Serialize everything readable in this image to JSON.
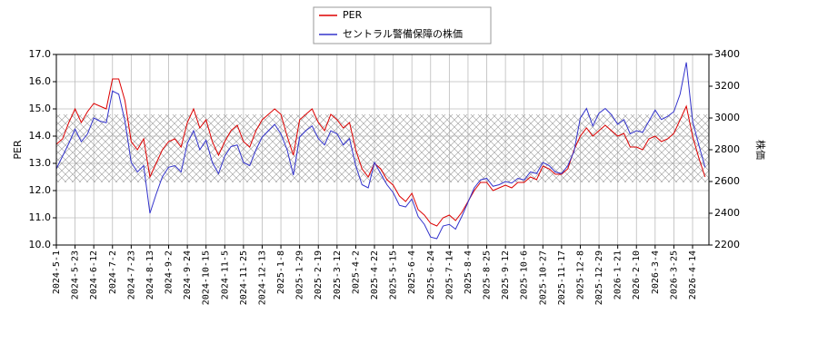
{
  "chart_data": {
    "type": "line",
    "y_label": "PER",
    "y2_label": "株価",
    "categories": [
      "2024-5-1",
      null,
      null,
      "2024-5-23",
      null,
      null,
      "2024-6-12",
      null,
      null,
      "2024-7-2",
      null,
      null,
      "2024-7-23",
      null,
      null,
      "2024-8-13",
      null,
      null,
      "2024-9-2",
      null,
      null,
      "2024-9-24",
      null,
      null,
      "2024-10-15",
      null,
      null,
      "2024-11-5",
      null,
      null,
      "2024-11-25",
      null,
      null,
      "2024-12-13",
      null,
      null,
      "2025-1-8",
      null,
      null,
      "2025-1-29",
      null,
      null,
      "2025-2-19",
      null,
      null,
      "2025-3-12",
      null,
      null,
      "2025-4-2",
      null,
      null,
      "2025-4-22",
      null,
      null,
      "2025-5-15",
      null,
      null,
      "2025-6-4",
      null,
      null,
      "2025-6-24",
      null,
      null,
      "2025-7-14",
      null,
      null,
      "2025-8-4",
      null,
      null,
      "2025-8-25",
      null,
      null,
      "2025-9-12",
      null,
      null,
      "2025-10-6",
      null,
      null,
      "2025-10-27",
      null,
      null,
      "2025-11-17",
      null,
      null,
      "2025-12-8",
      null,
      null,
      "2025-12-29",
      null,
      null,
      "2026-1-21",
      null,
      null,
      "2026-2-10",
      null,
      null,
      "2026-3-4",
      null,
      null,
      "2026-3-25",
      null,
      null,
      "2026-4-14",
      null,
      null
    ],
    "series": [
      {
        "name": "PER",
        "color": "#dd0000",
        "values": [
          13.7,
          13.9,
          14.5,
          15.0,
          14.5,
          14.9,
          15.2,
          15.1,
          15.0,
          16.1,
          16.1,
          15.3,
          13.8,
          13.5,
          13.9,
          12.5,
          13.0,
          13.5,
          13.8,
          13.9,
          13.6,
          14.5,
          15.0,
          14.3,
          14.6,
          13.8,
          13.3,
          13.8,
          14.2,
          14.4,
          13.8,
          13.6,
          14.2,
          14.6,
          14.8,
          15.0,
          14.8,
          14.0,
          13.3,
          14.6,
          14.8,
          15.0,
          14.5,
          14.2,
          14.8,
          14.6,
          14.3,
          14.5,
          13.5,
          12.8,
          12.5,
          13.0,
          12.8,
          12.4,
          12.2,
          11.8,
          11.6,
          11.9,
          11.3,
          11.1,
          10.8,
          10.7,
          11.0,
          11.1,
          10.9,
          11.2,
          11.6,
          12.0,
          12.3,
          12.3,
          12.0,
          12.1,
          12.2,
          12.1,
          12.3,
          12.3,
          12.5,
          12.4,
          12.9,
          12.8,
          12.6,
          12.6,
          12.8,
          13.5,
          14.0,
          14.3,
          14.0,
          14.2,
          14.4,
          14.2,
          14.0,
          14.1,
          13.6,
          13.6,
          13.5,
          13.9,
          14.0,
          13.8,
          13.9,
          14.1,
          14.6,
          15.1,
          14.0,
          13.2,
          12.5
        ]
      },
      {
        "name": "セントラル警備保障の株価",
        "color": "#3333cc",
        "axis": "y2",
        "values": [
          2680,
          2760,
          2840,
          2930,
          2850,
          2900,
          3000,
          2980,
          2970,
          3170,
          3150,
          2980,
          2720,
          2660,
          2700,
          2400,
          2520,
          2630,
          2690,
          2700,
          2660,
          2840,
          2920,
          2800,
          2860,
          2720,
          2650,
          2760,
          2820,
          2830,
          2720,
          2700,
          2800,
          2880,
          2920,
          2960,
          2900,
          2800,
          2640,
          2880,
          2920,
          2950,
          2870,
          2830,
          2920,
          2900,
          2830,
          2870,
          2700,
          2580,
          2560,
          2720,
          2650,
          2580,
          2530,
          2450,
          2440,
          2490,
          2380,
          2330,
          2250,
          2240,
          2320,
          2330,
          2300,
          2380,
          2470,
          2560,
          2610,
          2620,
          2570,
          2580,
          2600,
          2590,
          2620,
          2610,
          2660,
          2650,
          2720,
          2700,
          2660,
          2650,
          2700,
          2790,
          3000,
          3060,
          2950,
          3030,
          3060,
          3020,
          2960,
          2990,
          2900,
          2920,
          2910,
          2980,
          3050,
          2990,
          3010,
          3040,
          3150,
          3350,
          2980,
          2830,
          2690
        ]
      }
    ],
    "band": [
      12.3,
      14.8
    ],
    "ylim": [
      10,
      17
    ],
    "yticks": [
      {
        "value": 10,
        "label": "10.0"
      },
      {
        "value": 11,
        "label": "11.0"
      },
      {
        "value": 12,
        "label": "12.0"
      },
      {
        "value": 13,
        "label": "13.0"
      },
      {
        "value": 14,
        "label": "14.0"
      },
      {
        "value": 15,
        "label": "15.0"
      },
      {
        "value": 16,
        "label": "16.0"
      },
      {
        "value": 17,
        "label": "17.0"
      }
    ],
    "y2lim": [
      2200,
      3400
    ],
    "y2ticks": [
      2200,
      2400,
      2600,
      2800,
      3000,
      3200,
      3400
    ],
    "grid": true
  }
}
